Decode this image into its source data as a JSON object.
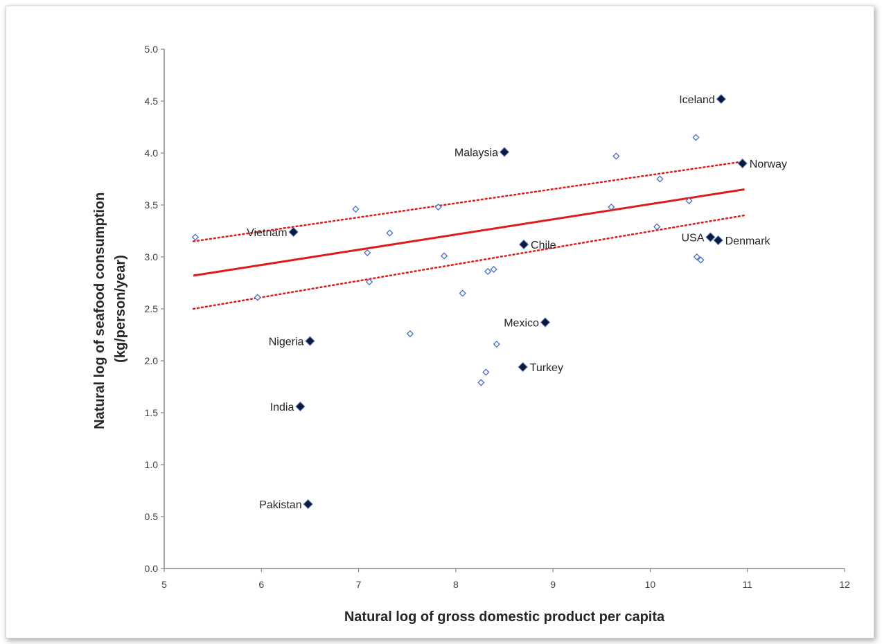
{
  "chart_data": {
    "type": "scatter",
    "xlabel": "Natural log of gross domestic product per capita",
    "ylabel_lines": [
      "Natural log of  seafood consumption",
      "(kg/person/year)"
    ],
    "xlim": [
      5,
      12
    ],
    "ylim": [
      0,
      5
    ],
    "x_ticks": [
      5,
      6,
      7,
      8,
      9,
      10,
      11,
      12
    ],
    "y_ticks": [
      0.0,
      0.5,
      1.0,
      1.5,
      2.0,
      2.5,
      3.0,
      3.5,
      4.0,
      4.5,
      5.0
    ],
    "grid": false,
    "colors": {
      "open_marker": "#4a6fc4",
      "filled_marker": "#0b1a3a",
      "fit_line": "#e01a1a",
      "axis": "#868686"
    },
    "labeled_points": [
      {
        "label": "Iceland",
        "x": 10.73,
        "y": 4.52,
        "label_side": "left"
      },
      {
        "label": "Malaysia",
        "x": 8.5,
        "y": 4.01,
        "label_side": "left"
      },
      {
        "label": "Norway",
        "x": 10.95,
        "y": 3.9,
        "label_side": "right"
      },
      {
        "label": "Vietnam",
        "x": 6.33,
        "y": 3.24,
        "label_side": "left"
      },
      {
        "label": "USA",
        "x": 10.62,
        "y": 3.19,
        "label_side": "left"
      },
      {
        "label": "Denmark",
        "x": 10.7,
        "y": 3.16,
        "label_side": "right"
      },
      {
        "label": "Chile",
        "x": 8.7,
        "y": 3.12,
        "label_side": "right"
      },
      {
        "label": "Mexico",
        "x": 8.92,
        "y": 2.37,
        "label_side": "left"
      },
      {
        "label": "Nigeria",
        "x": 6.5,
        "y": 2.19,
        "label_side": "left"
      },
      {
        "label": "Turkey",
        "x": 8.69,
        "y": 1.94,
        "label_side": "right"
      },
      {
        "label": "India",
        "x": 6.4,
        "y": 1.56,
        "label_side": "left"
      },
      {
        "label": "Pakistan",
        "x": 6.48,
        "y": 0.62,
        "label_side": "left"
      }
    ],
    "unlabeled_points": [
      {
        "x": 5.32,
        "y": 3.19
      },
      {
        "x": 5.96,
        "y": 2.61
      },
      {
        "x": 6.97,
        "y": 3.46
      },
      {
        "x": 7.09,
        "y": 3.04
      },
      {
        "x": 7.11,
        "y": 2.76
      },
      {
        "x": 7.32,
        "y": 3.23
      },
      {
        "x": 7.53,
        "y": 2.26
      },
      {
        "x": 7.82,
        "y": 3.48
      },
      {
        "x": 7.88,
        "y": 3.01
      },
      {
        "x": 8.07,
        "y": 2.65
      },
      {
        "x": 8.26,
        "y": 1.79
      },
      {
        "x": 8.31,
        "y": 1.89
      },
      {
        "x": 8.33,
        "y": 2.86
      },
      {
        "x": 8.39,
        "y": 2.88
      },
      {
        "x": 8.42,
        "y": 2.16
      },
      {
        "x": 9.6,
        "y": 3.48
      },
      {
        "x": 9.65,
        "y": 3.97
      },
      {
        "x": 10.07,
        "y": 3.29
      },
      {
        "x": 10.1,
        "y": 3.75
      },
      {
        "x": 10.4,
        "y": 3.54
      },
      {
        "x": 10.47,
        "y": 4.15
      },
      {
        "x": 10.48,
        "y": 3.0
      },
      {
        "x": 10.52,
        "y": 2.97
      }
    ],
    "fit_line": {
      "x": [
        5.3,
        10.97
      ],
      "y": [
        2.82,
        3.65
      ]
    },
    "confidence_upper": {
      "x": [
        5.3,
        10.97
      ],
      "y": [
        3.15,
        3.92
      ]
    },
    "confidence_lower": {
      "x": [
        5.3,
        10.97
      ],
      "y": [
        2.5,
        3.4
      ]
    }
  }
}
